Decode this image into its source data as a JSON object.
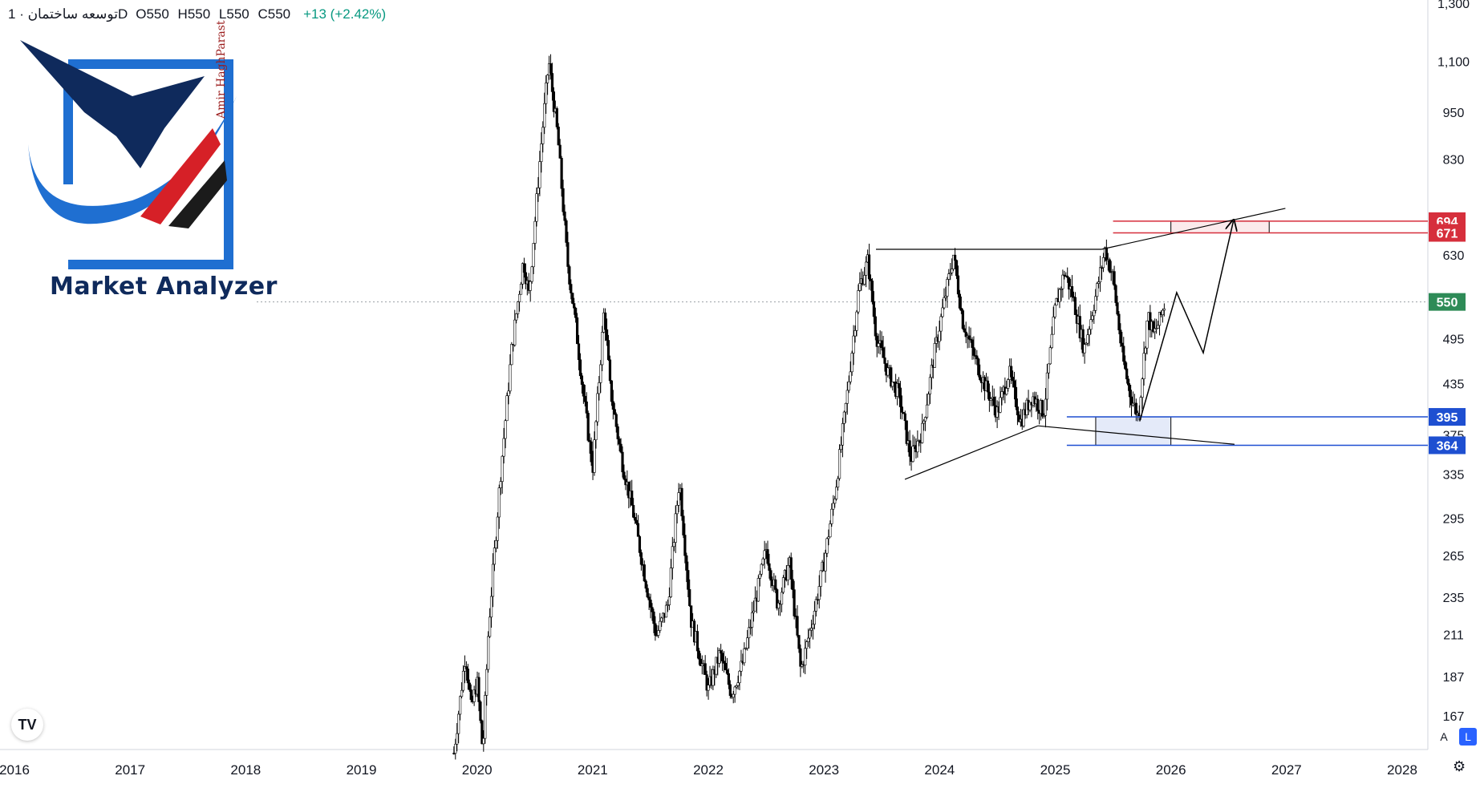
{
  "header": {
    "symbol": "توسعه ساختمان · 1D",
    "ohlc": {
      "open": "O550",
      "high": "H550",
      "low": "L550",
      "close": "C550"
    },
    "change": "+13 (+2.42%)"
  },
  "logo": {
    "text": "Market Analyzer",
    "signature": "Amir HaghParast",
    "colors": {
      "navy": "#0f2a5c",
      "blue": "#1f6fd1",
      "red": "#d62027",
      "dark": "#1b1b1b"
    }
  },
  "badge": {
    "label": "TV"
  },
  "axis_buttons": {
    "auto": "A",
    "log": "L"
  },
  "icons": {
    "settings": "gear-icon"
  },
  "colors": {
    "candle": "#000000",
    "resistance": "#d62f3c",
    "support": "#1e4fd1",
    "current_price": "#2e8b57",
    "grid_dotted": "#9aa0a6"
  },
  "chart_data": {
    "type": "candlestick",
    "scale": "log",
    "interval": "1D",
    "x_ticks": [
      "2016",
      "2017",
      "2018",
      "2019",
      "2020",
      "2021",
      "2022",
      "2023",
      "2024",
      "2025",
      "2026",
      "2027",
      "2028"
    ],
    "y_ticks": [
      1300,
      1100,
      950,
      830,
      630,
      495,
      435,
      375,
      335,
      295,
      265,
      235,
      211,
      187,
      167
    ],
    "y_tick_labels": [
      "1,300",
      "1,100",
      "950",
      "830",
      "630",
      "495",
      "435",
      "375",
      "335",
      "295",
      "265",
      "235",
      "211",
      "187",
      "167"
    ],
    "current_price": 550,
    "price_labels": [
      {
        "value": 694,
        "label": "694",
        "kind": "resistance"
      },
      {
        "value": 671,
        "label": "671",
        "kind": "resistance"
      },
      {
        "value": 550,
        "label": "550",
        "kind": "current"
      },
      {
        "value": 395,
        "label": "395",
        "kind": "support"
      },
      {
        "value": 364,
        "label": "364",
        "kind": "support"
      }
    ],
    "price_path": [
      [
        2019.8,
        150
      ],
      [
        2019.9,
        200
      ],
      [
        2019.95,
        170
      ],
      [
        2020.0,
        185
      ],
      [
        2020.05,
        150
      ],
      [
        2020.1,
        215
      ],
      [
        2020.2,
        330
      ],
      [
        2020.3,
        480
      ],
      [
        2020.4,
        620
      ],
      [
        2020.45,
        560
      ],
      [
        2020.55,
        850
      ],
      [
        2020.62,
        1100
      ],
      [
        2020.7,
        880
      ],
      [
        2020.78,
        620
      ],
      [
        2020.85,
        520
      ],
      [
        2020.92,
        420
      ],
      [
        2021.0,
        340
      ],
      [
        2021.1,
        540
      ],
      [
        2021.15,
        430
      ],
      [
        2021.25,
        350
      ],
      [
        2021.35,
        300
      ],
      [
        2021.45,
        250
      ],
      [
        2021.55,
        210
      ],
      [
        2021.65,
        230
      ],
      [
        2021.75,
        330
      ],
      [
        2021.85,
        220
      ],
      [
        2022.0,
        180
      ],
      [
        2022.1,
        200
      ],
      [
        2022.2,
        178
      ],
      [
        2022.3,
        195
      ],
      [
        2022.4,
        230
      ],
      [
        2022.5,
        270
      ],
      [
        2022.6,
        230
      ],
      [
        2022.7,
        260
      ],
      [
        2022.8,
        190
      ],
      [
        2022.9,
        220
      ],
      [
        2023.0,
        260
      ],
      [
        2023.1,
        320
      ],
      [
        2023.2,
        420
      ],
      [
        2023.3,
        570
      ],
      [
        2023.38,
        620
      ],
      [
        2023.45,
        500
      ],
      [
        2023.55,
        450
      ],
      [
        2023.65,
        420
      ],
      [
        2023.75,
        350
      ],
      [
        2023.85,
        380
      ],
      [
        2023.95,
        470
      ],
      [
        2024.05,
        560
      ],
      [
        2024.12,
        630
      ],
      [
        2024.2,
        520
      ],
      [
        2024.3,
        470
      ],
      [
        2024.4,
        430
      ],
      [
        2024.5,
        400
      ],
      [
        2024.6,
        450
      ],
      [
        2024.7,
        390
      ],
      [
        2024.8,
        420
      ],
      [
        2024.9,
        400
      ],
      [
        2025.0,
        540
      ],
      [
        2025.08,
        600
      ],
      [
        2025.15,
        560
      ],
      [
        2025.25,
        480
      ],
      [
        2025.35,
        560
      ],
      [
        2025.43,
        640
      ],
      [
        2025.5,
        590
      ],
      [
        2025.58,
        470
      ],
      [
        2025.65,
        420
      ],
      [
        2025.72,
        395
      ],
      [
        2025.8,
        530
      ],
      [
        2025.85,
        500
      ],
      [
        2025.9,
        520
      ],
      [
        2025.95,
        550
      ]
    ],
    "annotations": {
      "resistance_top_line": {
        "x": [
          2023.45,
          2025.4
        ],
        "y": [
          640,
          640
        ]
      },
      "ascending_support_line": {
        "x": [
          2023.7,
          2024.85
        ],
        "y": [
          330,
          385
        ]
      },
      "converging_lower_line": {
        "x": [
          2024.85,
          2026.55
        ],
        "y": [
          385,
          365
        ]
      },
      "rising_resistance_line": {
        "x": [
          2025.4,
          2026.99
        ],
        "y": [
          640,
          720
        ]
      },
      "projection_path": {
        "x": [
          2025.73,
          2026.05,
          2026.28,
          2026.54
        ],
        "y": [
          390,
          565,
          475,
          694
        ]
      },
      "resistance_zone": {
        "x": [
          2026.0,
          2026.85
        ],
        "y": [
          671,
          694
        ]
      },
      "support_zone": {
        "x": [
          2025.35,
          2026.0
        ],
        "y": [
          364,
          395
        ]
      }
    }
  }
}
